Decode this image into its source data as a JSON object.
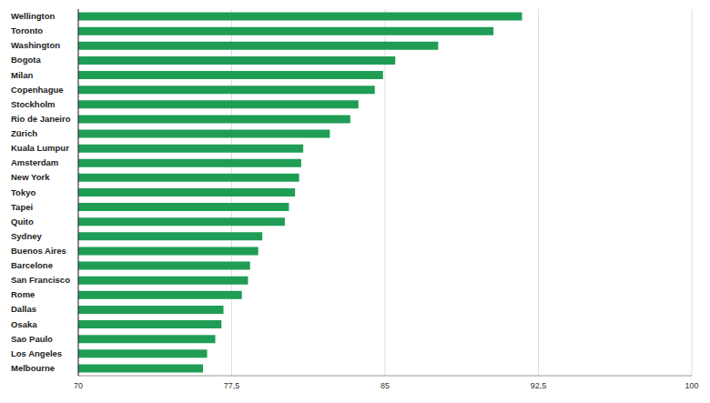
{
  "chart_data": {
    "type": "bar",
    "orientation": "horizontal",
    "categories": [
      "Wellington",
      "Toronto",
      "Washington",
      "Bogota",
      "Milan",
      "Copenhague",
      "Stockholm",
      "Rio de Janeiro",
      "Zürich",
      "Kuala Lumpur",
      "Amsterdam",
      "New York",
      "Tokyo",
      "Tapei",
      "Quito",
      "Sydney",
      "Buenos Aires",
      "Barcelone",
      "San Francisco",
      "Rome",
      "Dallas",
      "Osaka",
      "Sao Paulo",
      "Los Angeles",
      "Melbourne"
    ],
    "values": [
      91.7,
      90.3,
      87.6,
      85.5,
      84.9,
      84.5,
      83.7,
      83.3,
      82.3,
      81.0,
      80.9,
      80.8,
      80.6,
      80.3,
      80.1,
      79.0,
      78.8,
      78.4,
      78.3,
      78.0,
      77.1,
      77.0,
      76.7,
      76.3,
      76.1
    ],
    "color": "#1f9d55",
    "xlim": [
      70,
      100
    ],
    "xticks": [
      70,
      {
        "value": 77.5,
        "label": "77,5"
      },
      85,
      {
        "value": 92.5,
        "label": "92,5"
      },
      100
    ],
    "grid": true
  }
}
